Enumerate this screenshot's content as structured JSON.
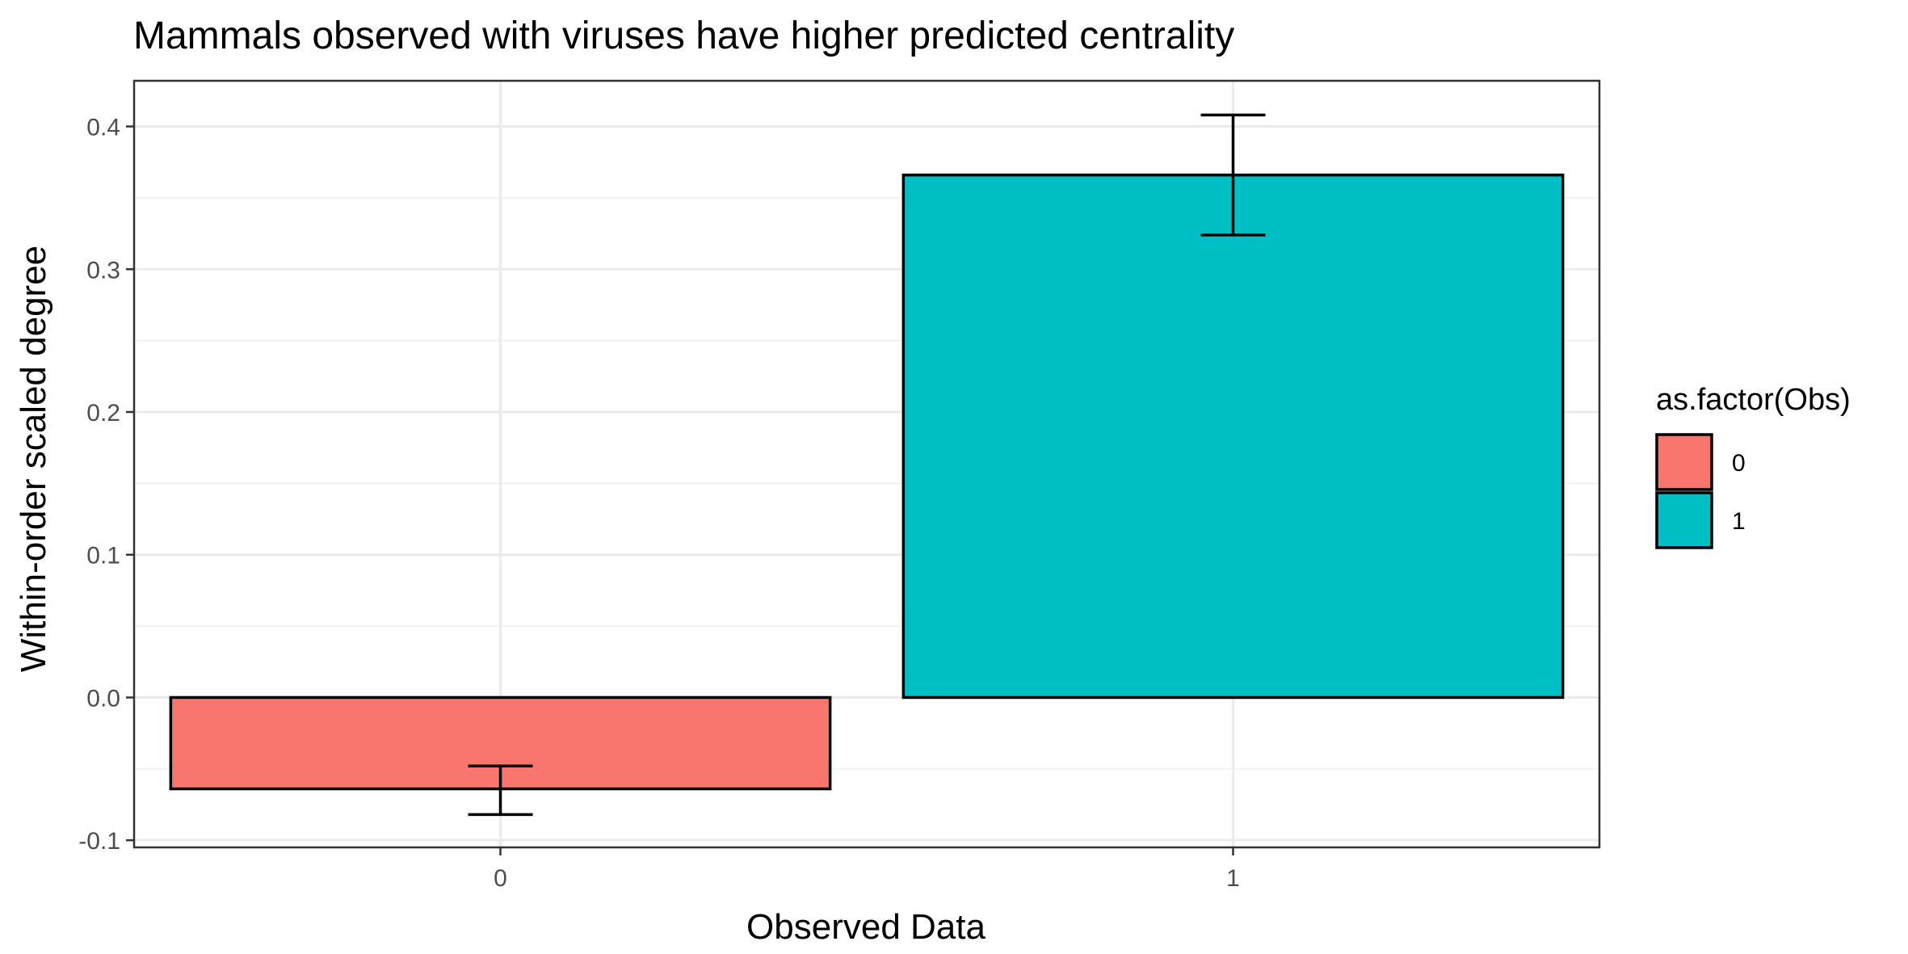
{
  "chart_data": {
    "type": "bar",
    "title": "Mammals observed with viruses have higher predicted centrality",
    "xlabel": "Observed Data",
    "ylabel": "Within-order scaled degree",
    "categories": [
      "0",
      "1"
    ],
    "values": [
      -0.064,
      0.366
    ],
    "error_low": [
      -0.082,
      0.324
    ],
    "error_high": [
      -0.048,
      0.408
    ],
    "colors": [
      "#F8766D",
      "#00BFC4"
    ],
    "ylim": [
      -0.105,
      0.432
    ],
    "yticks": [
      -0.1,
      0.0,
      0.1,
      0.2,
      0.3,
      0.4
    ],
    "ytick_labels": [
      "-0.1",
      "0.0",
      "0.1",
      "0.2",
      "0.3",
      "0.4"
    ],
    "grid": true,
    "legend": {
      "title": "as.factor(Obs)",
      "position": "right",
      "items": [
        {
          "label": "0",
          "color": "#F8766D"
        },
        {
          "label": "1",
          "color": "#00BFC4"
        }
      ]
    }
  }
}
